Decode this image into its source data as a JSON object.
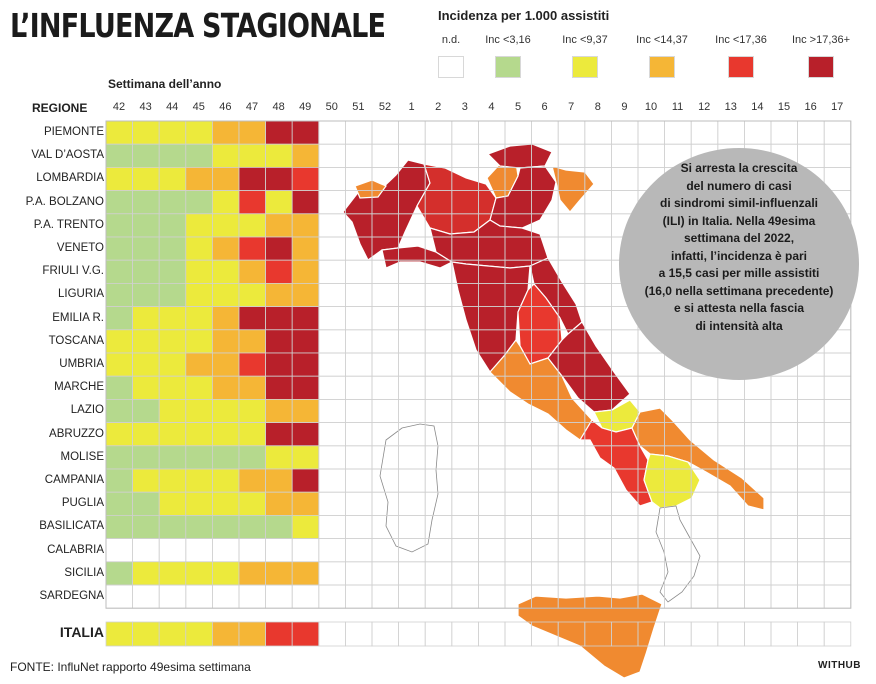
{
  "title": "L’INFLUENZA STAGIONALE",
  "legend": {
    "title": "Incidenza per 1.000 assistiti",
    "items": [
      {
        "label": "n.d.",
        "color": "#ffffff"
      },
      {
        "label": "Inc <3,16",
        "color": "#b5d98d"
      },
      {
        "label": "Inc <9,37",
        "color": "#ecea3c"
      },
      {
        "label": "Inc <14,37",
        "color": "#f5b636"
      },
      {
        "label": "Inc <17,36",
        "color": "#e8382e"
      },
      {
        "label": "Inc >17,36+",
        "color": "#b8202a"
      }
    ]
  },
  "week_axis_title": "Settimana dell’anno",
  "region_header": "REGIONE",
  "chart_data": {
    "type": "heatmap",
    "x": [
      "42",
      "43",
      "44",
      "45",
      "46",
      "47",
      "48",
      "49",
      "50",
      "51",
      "52",
      "1",
      "2",
      "3",
      "4",
      "5",
      "6",
      "7",
      "8",
      "9",
      "10",
      "11",
      "12",
      "13",
      "14",
      "15",
      "16",
      "17"
    ],
    "level_scale": [
      "n.d.",
      "Inc <3,16",
      "Inc <9,37",
      "Inc <14,37",
      "Inc <17,36",
      "Inc >17,36+"
    ],
    "rows": [
      {
        "region": "PIEMONTE",
        "levels": [
          2,
          2,
          2,
          2,
          3,
          3,
          5,
          5
        ]
      },
      {
        "region": "VAL D’AOSTA",
        "levels": [
          1,
          1,
          1,
          1,
          2,
          2,
          2,
          3
        ]
      },
      {
        "region": "LOMBARDIA",
        "levels": [
          2,
          2,
          2,
          3,
          3,
          5,
          5,
          4
        ]
      },
      {
        "region": "P.A. BOLZANO",
        "levels": [
          1,
          1,
          1,
          1,
          2,
          4,
          2,
          5
        ]
      },
      {
        "region": "P.A. TRENTO",
        "levels": [
          1,
          1,
          1,
          2,
          2,
          2,
          3,
          3
        ]
      },
      {
        "region": "VENETO",
        "levels": [
          1,
          1,
          1,
          2,
          3,
          4,
          5,
          3
        ]
      },
      {
        "region": "FRIULI V.G.",
        "levels": [
          1,
          1,
          1,
          2,
          2,
          3,
          4,
          3
        ]
      },
      {
        "region": "LIGURIA",
        "levels": [
          1,
          1,
          1,
          2,
          2,
          2,
          3,
          3
        ]
      },
      {
        "region": "EMILIA R.",
        "levels": [
          1,
          2,
          2,
          2,
          3,
          5,
          5,
          5
        ]
      },
      {
        "region": "TOSCANA",
        "levels": [
          2,
          2,
          2,
          2,
          3,
          3,
          5,
          5
        ]
      },
      {
        "region": "UMBRIA",
        "levels": [
          2,
          2,
          2,
          3,
          3,
          4,
          5,
          5
        ]
      },
      {
        "region": "MARCHE",
        "levels": [
          1,
          2,
          2,
          2,
          3,
          3,
          5,
          5
        ]
      },
      {
        "region": "LAZIO",
        "levels": [
          1,
          1,
          2,
          2,
          2,
          2,
          3,
          3
        ]
      },
      {
        "region": "ABRUZZO",
        "levels": [
          2,
          2,
          2,
          2,
          2,
          2,
          5,
          5
        ]
      },
      {
        "region": "MOLISE",
        "levels": [
          1,
          1,
          1,
          1,
          1,
          1,
          2,
          2
        ]
      },
      {
        "region": "CAMPANIA",
        "levels": [
          1,
          2,
          2,
          2,
          2,
          3,
          3,
          5
        ]
      },
      {
        "region": "PUGLIA",
        "levels": [
          1,
          1,
          2,
          2,
          2,
          2,
          3,
          3
        ]
      },
      {
        "region": "BASILICATA",
        "levels": [
          1,
          1,
          1,
          1,
          1,
          1,
          1,
          2
        ]
      },
      {
        "region": "CALABRIA",
        "levels": [
          0,
          0,
          0,
          0,
          0,
          0,
          0,
          0
        ]
      },
      {
        "region": "SICILIA",
        "levels": [
          1,
          2,
          2,
          2,
          2,
          3,
          3,
          3
        ]
      },
      {
        "region": "SARDEGNA",
        "levels": [
          0,
          0,
          0,
          0,
          0,
          0,
          0,
          0
        ]
      }
    ],
    "total": {
      "region": "ITALIA",
      "levels": [
        2,
        2,
        2,
        2,
        3,
        3,
        4,
        4
      ]
    }
  },
  "note": [
    "Si arresta la crescita",
    "del numero di casi",
    "di sindromi simil-influenzali",
    "(ILI) in Italia. Nella 49esima",
    "settimana del 2022,",
    "infatti, l’incidenza è pari",
    "a 15,5 casi  per mille assistiti",
    "(16,0 nella settimana precedente)",
    "e si attesta nella fascia",
    "di intensità alta"
  ],
  "source": "FONTE: InfluNet rapporto 49esima settimana",
  "brand": "WITHUB"
}
